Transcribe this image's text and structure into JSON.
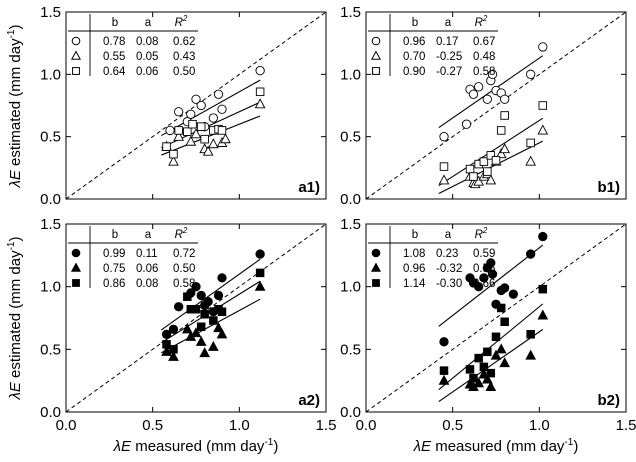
{
  "axes": {
    "xlabel_prefix": "λE",
    "xlabel_rest": " measured (mm day",
    "ylabel_prefix": "λE",
    "ylabel_rest": " estimated (mm day",
    "unit_exp": "-1",
    "close": ")",
    "ticks": [
      "0.0",
      "0.5",
      "1.0",
      "1.5"
    ]
  },
  "table_header": {
    "b": "b",
    "a": "a",
    "r2": "R",
    "r2_exp": "2"
  },
  "chart_data": [
    {
      "type": "scatter",
      "label": "a1)",
      "filled": false,
      "xlim": [
        0,
        1.5
      ],
      "ylim": [
        0,
        1.5
      ],
      "one_to_one": true,
      "rows": [
        [
          "0.78",
          "0.08",
          "0.62"
        ],
        [
          "0.55",
          "0.05",
          "0.43"
        ],
        [
          "0.64",
          "0.06",
          "0.50"
        ]
      ],
      "series": [
        {
          "marker": "circle",
          "b": 0.78,
          "a": 0.08,
          "fit_x": [
            0.55,
            1.12
          ],
          "points": [
            [
              0.6,
              0.55
            ],
            [
              0.65,
              0.7
            ],
            [
              0.7,
              0.62
            ],
            [
              0.72,
              0.68
            ],
            [
              0.75,
              0.8
            ],
            [
              0.78,
              0.75
            ],
            [
              0.8,
              0.58
            ],
            [
              0.85,
              0.65
            ],
            [
              0.88,
              0.84
            ],
            [
              0.9,
              0.72
            ],
            [
              1.12,
              1.03
            ]
          ]
        },
        {
          "marker": "triangle",
          "b": 0.55,
          "a": 0.05,
          "fit_x": [
            0.55,
            1.12
          ],
          "points": [
            [
              0.58,
              0.42
            ],
            [
              0.62,
              0.3
            ],
            [
              0.65,
              0.5
            ],
            [
              0.72,
              0.46
            ],
            [
              0.75,
              0.52
            ],
            [
              0.8,
              0.4
            ],
            [
              0.82,
              0.38
            ],
            [
              0.85,
              0.44
            ],
            [
              0.9,
              0.45
            ],
            [
              0.92,
              0.48
            ],
            [
              1.12,
              0.76
            ]
          ]
        },
        {
          "marker": "square",
          "b": 0.64,
          "a": 0.06,
          "fit_x": [
            0.55,
            1.12
          ],
          "points": [
            [
              0.58,
              0.42
            ],
            [
              0.62,
              0.36
            ],
            [
              0.65,
              0.55
            ],
            [
              0.7,
              0.54
            ],
            [
              0.73,
              0.6
            ],
            [
              0.78,
              0.58
            ],
            [
              0.8,
              0.48
            ],
            [
              0.85,
              0.55
            ],
            [
              0.88,
              0.56
            ],
            [
              0.9,
              0.55
            ],
            [
              1.12,
              0.86
            ]
          ]
        }
      ]
    },
    {
      "type": "scatter",
      "label": "b1)",
      "filled": false,
      "xlim": [
        0,
        1.5
      ],
      "ylim": [
        0,
        1.5
      ],
      "one_to_one": true,
      "rows": [
        [
          "0.96",
          "0.17",
          "0.67"
        ],
        [
          "0.70",
          "-0.25",
          "0.48"
        ],
        [
          "0.90",
          "-0.27",
          "0.58"
        ]
      ],
      "series": [
        {
          "marker": "circle",
          "b": 0.96,
          "a": 0.17,
          "fit_x": [
            0.42,
            1.02
          ],
          "points": [
            [
              0.45,
              0.5
            ],
            [
              0.58,
              0.6
            ],
            [
              0.6,
              0.88
            ],
            [
              0.62,
              0.84
            ],
            [
              0.65,
              0.9
            ],
            [
              0.7,
              0.8
            ],
            [
              0.72,
              0.95
            ],
            [
              0.73,
              1.0
            ],
            [
              0.75,
              0.87
            ],
            [
              0.78,
              0.85
            ],
            [
              0.8,
              0.8
            ],
            [
              0.95,
              1.0
            ],
            [
              1.02,
              1.22
            ]
          ]
        },
        {
          "marker": "triangle",
          "b": 0.7,
          "a": -0.25,
          "fit_x": [
            0.42,
            1.02
          ],
          "points": [
            [
              0.45,
              0.15
            ],
            [
              0.6,
              0.18
            ],
            [
              0.62,
              0.13
            ],
            [
              0.63,
              0.12
            ],
            [
              0.65,
              0.14
            ],
            [
              0.68,
              0.18
            ],
            [
              0.7,
              0.2
            ],
            [
              0.72,
              0.15
            ],
            [
              0.75,
              0.3
            ],
            [
              0.78,
              0.36
            ],
            [
              0.8,
              0.4
            ],
            [
              0.95,
              0.3
            ],
            [
              1.02,
              0.55
            ]
          ]
        },
        {
          "marker": "square",
          "b": 0.9,
          "a": -0.27,
          "fit_x": [
            0.42,
            1.02
          ],
          "points": [
            [
              0.45,
              0.26
            ],
            [
              0.6,
              0.24
            ],
            [
              0.62,
              0.18
            ],
            [
              0.65,
              0.28
            ],
            [
              0.68,
              0.3
            ],
            [
              0.7,
              0.22
            ],
            [
              0.72,
              0.35
            ],
            [
              0.75,
              0.31
            ],
            [
              0.78,
              0.55
            ],
            [
              0.8,
              0.67
            ],
            [
              0.95,
              0.45
            ],
            [
              1.02,
              0.75
            ]
          ]
        }
      ]
    },
    {
      "type": "scatter",
      "label": "a2)",
      "filled": true,
      "xlim": [
        0,
        1.5
      ],
      "ylim": [
        0,
        1.5
      ],
      "one_to_one": true,
      "rows": [
        [
          "0.99",
          "0.11",
          "0.72"
        ],
        [
          "0.75",
          "0.06",
          "0.50"
        ],
        [
          "0.86",
          "0.08",
          "0.58"
        ]
      ],
      "series": [
        {
          "marker": "circle",
          "b": 0.99,
          "a": 0.11,
          "fit_x": [
            0.55,
            1.12
          ],
          "points": [
            [
              0.58,
              0.62
            ],
            [
              0.62,
              0.66
            ],
            [
              0.65,
              0.84
            ],
            [
              0.72,
              0.95
            ],
            [
              0.75,
              1.0
            ],
            [
              0.78,
              0.93
            ],
            [
              0.8,
              0.85
            ],
            [
              0.82,
              0.88
            ],
            [
              0.85,
              0.8
            ],
            [
              0.88,
              0.93
            ],
            [
              0.9,
              1.07
            ],
            [
              1.12,
              1.26
            ]
          ]
        },
        {
          "marker": "triangle",
          "b": 0.75,
          "a": 0.06,
          "fit_x": [
            0.55,
            1.12
          ],
          "points": [
            [
              0.58,
              0.48
            ],
            [
              0.62,
              0.44
            ],
            [
              0.7,
              0.66
            ],
            [
              0.72,
              0.6
            ],
            [
              0.75,
              0.63
            ],
            [
              0.78,
              0.56
            ],
            [
              0.8,
              0.47
            ],
            [
              0.85,
              0.52
            ],
            [
              0.88,
              0.67
            ],
            [
              0.9,
              0.62
            ],
            [
              1.12,
              1.0
            ]
          ]
        },
        {
          "marker": "square",
          "b": 0.86,
          "a": 0.08,
          "fit_x": [
            0.55,
            1.12
          ],
          "points": [
            [
              0.58,
              0.54
            ],
            [
              0.62,
              0.5
            ],
            [
              0.7,
              0.92
            ],
            [
              0.72,
              0.82
            ],
            [
              0.75,
              0.82
            ],
            [
              0.78,
              0.68
            ],
            [
              0.8,
              0.78
            ],
            [
              0.85,
              0.73
            ],
            [
              0.88,
              0.82
            ],
            [
              0.9,
              0.8
            ],
            [
              1.12,
              1.11
            ]
          ]
        }
      ]
    },
    {
      "type": "scatter",
      "label": "b2)",
      "filled": true,
      "xlim": [
        0,
        1.5
      ],
      "ylim": [
        0,
        1.5
      ],
      "one_to_one": true,
      "rows": [
        [
          "1.08",
          "0.23",
          "0.59"
        ],
        [
          "0.96",
          "-0.32",
          "0.55"
        ],
        [
          "1.14",
          "-0.30",
          "0.66"
        ]
      ],
      "series": [
        {
          "marker": "circle",
          "b": 1.08,
          "a": 0.23,
          "fit_x": [
            0.42,
            1.02
          ],
          "points": [
            [
              0.45,
              0.56
            ],
            [
              0.6,
              1.07
            ],
            [
              0.62,
              1.03
            ],
            [
              0.65,
              1.0
            ],
            [
              0.68,
              1.07
            ],
            [
              0.7,
              1.15
            ],
            [
              0.72,
              1.19
            ],
            [
              0.73,
              1.1
            ],
            [
              0.75,
              0.86
            ],
            [
              0.78,
              0.97
            ],
            [
              0.8,
              0.99
            ],
            [
              0.85,
              0.94
            ],
            [
              0.95,
              1.26
            ],
            [
              1.02,
              1.4
            ]
          ]
        },
        {
          "marker": "triangle",
          "b": 0.96,
          "a": -0.32,
          "fit_x": [
            0.42,
            1.02
          ],
          "points": [
            [
              0.45,
              0.25
            ],
            [
              0.6,
              0.22
            ],
            [
              0.62,
              0.2
            ],
            [
              0.65,
              0.23
            ],
            [
              0.68,
              0.3
            ],
            [
              0.7,
              0.26
            ],
            [
              0.72,
              0.2
            ],
            [
              0.75,
              0.45
            ],
            [
              0.78,
              0.5
            ],
            [
              0.8,
              0.39
            ],
            [
              0.95,
              0.45
            ],
            [
              1.02,
              0.77
            ]
          ]
        },
        {
          "marker": "square",
          "b": 1.14,
          "a": -0.3,
          "fit_x": [
            0.42,
            1.02
          ],
          "points": [
            [
              0.45,
              0.33
            ],
            [
              0.6,
              0.34
            ],
            [
              0.62,
              0.27
            ],
            [
              0.65,
              0.43
            ],
            [
              0.68,
              0.36
            ],
            [
              0.7,
              0.48
            ],
            [
              0.72,
              0.31
            ],
            [
              0.75,
              0.6
            ],
            [
              0.78,
              0.83
            ],
            [
              0.8,
              0.72
            ],
            [
              0.95,
              0.62
            ],
            [
              1.02,
              0.98
            ]
          ]
        }
      ]
    }
  ]
}
